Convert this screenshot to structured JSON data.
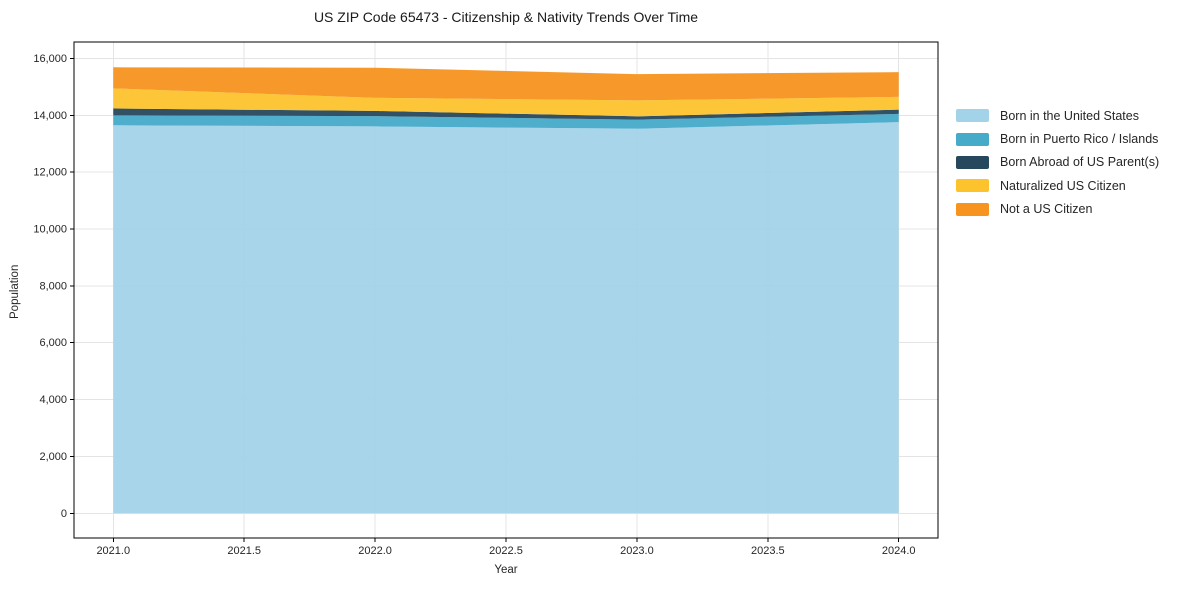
{
  "colors": {
    "background": "#ffffff",
    "grid": "#e4e4e4",
    "spine": "#000000",
    "tick": "#262626",
    "text": "#262626"
  },
  "chart_data": {
    "type": "area",
    "stacked": true,
    "title": "US ZIP Code 65473 - Citizenship & Nativity Trends Over Time",
    "xlabel": "Year",
    "ylabel": "Population",
    "x": [
      2021,
      2022,
      2023,
      2024
    ],
    "series": [
      {
        "name": "Born in the United States",
        "color": "#a3d3e9",
        "values": [
          13650,
          13610,
          13530,
          13760
        ]
      },
      {
        "name": "Born in Puerto Rico / Islands",
        "color": "#46aac9",
        "values": [
          350,
          360,
          320,
          290
        ]
      },
      {
        "name": "Born Abroad of US Parent(s)",
        "color": "#27485c",
        "values": [
          240,
          185,
          115,
          150
        ]
      },
      {
        "name": "Naturalized US Citizen",
        "color": "#fcc32d",
        "values": [
          710,
          460,
          560,
          450
        ]
      },
      {
        "name": "Not a US Citizen",
        "color": "#f7941f",
        "values": [
          740,
          1060,
          925,
          870
        ]
      }
    ],
    "x_ticks": [
      2021.0,
      2021.5,
      2022.0,
      2022.5,
      2023.0,
      2023.5,
      2024.0
    ],
    "x_tick_labels": [
      "2021.0",
      "2021.5",
      "2022.0",
      "2022.5",
      "2023.0",
      "2023.5",
      "2024.0"
    ],
    "y_ticks": [
      0,
      2000,
      4000,
      6000,
      8000,
      10000,
      12000,
      14000,
      16000
    ],
    "y_tick_labels": [
      "0",
      "2,000",
      "4,000",
      "6,000",
      "8,000",
      "10,000",
      "12,000",
      "14,000",
      "16,000"
    ],
    "xlim": [
      2020.85,
      2024.15
    ],
    "ylim": [
      -870,
      16580
    ],
    "grid": true,
    "legend_position": "right"
  }
}
